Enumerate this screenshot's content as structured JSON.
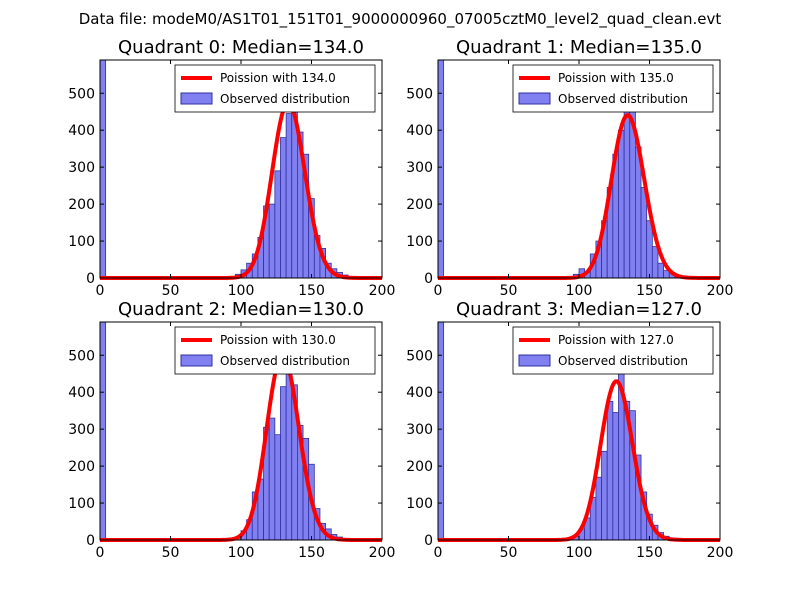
{
  "figure": {
    "suptitle": "Data file: modeM0/AS1T01_151T01_9000000960_07005cztM0_level2_quad_clean.evt",
    "colors": {
      "bar_fill": "#8080f0",
      "bar_edge": "#3030a0",
      "fit_line": "#ff0000",
      "axes": "#000000"
    }
  },
  "chart_data": [
    {
      "type": "bar",
      "title": "Quadrant 0: Median=134.0",
      "xlim": [
        0,
        200
      ],
      "ylim": [
        0,
        590
      ],
      "xticks": [
        "0",
        "50",
        "100",
        "150",
        "200"
      ],
      "yticks": [
        "0",
        "100",
        "200",
        "300",
        "400",
        "500"
      ],
      "legend": {
        "position": "top-right",
        "line_label": "Poission with 134.0",
        "bar_label": "Observed distribution"
      },
      "bin_width": 4,
      "bins": [
        {
          "x": 0,
          "h": 590
        },
        {
          "x": 88,
          "h": 2
        },
        {
          "x": 92,
          "h": 4
        },
        {
          "x": 96,
          "h": 10
        },
        {
          "x": 100,
          "h": 22
        },
        {
          "x": 104,
          "h": 40
        },
        {
          "x": 108,
          "h": 65
        },
        {
          "x": 112,
          "h": 110
        },
        {
          "x": 116,
          "h": 195
        },
        {
          "x": 120,
          "h": 200
        },
        {
          "x": 124,
          "h": 290
        },
        {
          "x": 128,
          "h": 380
        },
        {
          "x": 132,
          "h": 445
        },
        {
          "x": 136,
          "h": 450
        },
        {
          "x": 140,
          "h": 395
        },
        {
          "x": 144,
          "h": 335
        },
        {
          "x": 148,
          "h": 215
        },
        {
          "x": 152,
          "h": 115
        },
        {
          "x": 156,
          "h": 80
        },
        {
          "x": 160,
          "h": 40
        },
        {
          "x": 164,
          "h": 25
        },
        {
          "x": 168,
          "h": 15
        },
        {
          "x": 172,
          "h": 8
        },
        {
          "x": 176,
          "h": 4
        },
        {
          "x": 180,
          "h": 2
        }
      ],
      "poisson": {
        "mean": 134.0,
        "scale": 4
      }
    },
    {
      "type": "bar",
      "title": "Quadrant 1: Median=135.0",
      "xlim": [
        0,
        200
      ],
      "ylim": [
        0,
        590
      ],
      "xticks": [
        "0",
        "50",
        "100",
        "150",
        "200"
      ],
      "yticks": [
        "0",
        "100",
        "200",
        "300",
        "400",
        "500"
      ],
      "legend": {
        "position": "top-right",
        "line_label": "Poission with 135.0",
        "bar_label": "Observed distribution"
      },
      "bin_width": 4,
      "bins": [
        {
          "x": 0,
          "h": 590
        },
        {
          "x": 80,
          "h": 2
        },
        {
          "x": 96,
          "h": 10
        },
        {
          "x": 100,
          "h": 25
        },
        {
          "x": 104,
          "h": 15
        },
        {
          "x": 108,
          "h": 65
        },
        {
          "x": 112,
          "h": 100
        },
        {
          "x": 116,
          "h": 155
        },
        {
          "x": 120,
          "h": 245
        },
        {
          "x": 124,
          "h": 335
        },
        {
          "x": 128,
          "h": 400
        },
        {
          "x": 132,
          "h": 470
        },
        {
          "x": 136,
          "h": 460
        },
        {
          "x": 140,
          "h": 355
        },
        {
          "x": 144,
          "h": 245
        },
        {
          "x": 148,
          "h": 155
        },
        {
          "x": 152,
          "h": 85
        },
        {
          "x": 156,
          "h": 40
        },
        {
          "x": 160,
          "h": 20
        },
        {
          "x": 164,
          "h": 15
        },
        {
          "x": 168,
          "h": 8
        },
        {
          "x": 172,
          "h": 4
        }
      ],
      "poisson": {
        "mean": 135.0,
        "scale": 4
      }
    },
    {
      "type": "bar",
      "title": "Quadrant 2: Median=130.0",
      "xlim": [
        0,
        200
      ],
      "ylim": [
        0,
        590
      ],
      "xticks": [
        "0",
        "50",
        "100",
        "150",
        "200"
      ],
      "yticks": [
        "0",
        "100",
        "200",
        "300",
        "400",
        "500"
      ],
      "legend": {
        "position": "top-right",
        "line_label": "Poission with 130.0",
        "bar_label": "Observed distribution"
      },
      "bin_width": 4,
      "bins": [
        {
          "x": 0,
          "h": 590
        },
        {
          "x": 84,
          "h": 2
        },
        {
          "x": 96,
          "h": 5
        },
        {
          "x": 100,
          "h": 25
        },
        {
          "x": 104,
          "h": 55
        },
        {
          "x": 108,
          "h": 130
        },
        {
          "x": 112,
          "h": 165
        },
        {
          "x": 116,
          "h": 305
        },
        {
          "x": 120,
          "h": 330
        },
        {
          "x": 124,
          "h": 285
        },
        {
          "x": 128,
          "h": 415
        },
        {
          "x": 132,
          "h": 470
        },
        {
          "x": 136,
          "h": 420
        },
        {
          "x": 140,
          "h": 310
        },
        {
          "x": 144,
          "h": 275
        },
        {
          "x": 148,
          "h": 205
        },
        {
          "x": 152,
          "h": 85
        },
        {
          "x": 156,
          "h": 45
        },
        {
          "x": 160,
          "h": 30
        },
        {
          "x": 164,
          "h": 15
        },
        {
          "x": 168,
          "h": 8
        },
        {
          "x": 172,
          "h": 3
        }
      ],
      "poisson": {
        "mean": 130.0,
        "scale": 4
      }
    },
    {
      "type": "bar",
      "title": "Quadrant 3: Median=127.0",
      "xlim": [
        0,
        200
      ],
      "ylim": [
        0,
        590
      ],
      "xticks": [
        "0",
        "50",
        "100",
        "150",
        "200"
      ],
      "yticks": [
        "0",
        "100",
        "200",
        "300",
        "400",
        "500"
      ],
      "legend": {
        "position": "top-right",
        "line_label": "Poission with 127.0",
        "bar_label": "Observed distribution"
      },
      "bin_width": 4,
      "bins": [
        {
          "x": 0,
          "h": 590
        },
        {
          "x": 80,
          "h": 2
        },
        {
          "x": 96,
          "h": 10
        },
        {
          "x": 100,
          "h": 30
        },
        {
          "x": 104,
          "h": 60
        },
        {
          "x": 108,
          "h": 115
        },
        {
          "x": 112,
          "h": 170
        },
        {
          "x": 116,
          "h": 240
        },
        {
          "x": 120,
          "h": 375
        },
        {
          "x": 124,
          "h": 345
        },
        {
          "x": 128,
          "h": 455
        },
        {
          "x": 132,
          "h": 375
        },
        {
          "x": 136,
          "h": 350
        },
        {
          "x": 140,
          "h": 230
        },
        {
          "x": 144,
          "h": 130
        },
        {
          "x": 148,
          "h": 70
        },
        {
          "x": 152,
          "h": 40
        },
        {
          "x": 156,
          "h": 20
        },
        {
          "x": 160,
          "h": 10
        },
        {
          "x": 164,
          "h": 5
        },
        {
          "x": 168,
          "h": 2
        }
      ],
      "poisson": {
        "mean": 127.0,
        "scale": 4
      }
    }
  ]
}
